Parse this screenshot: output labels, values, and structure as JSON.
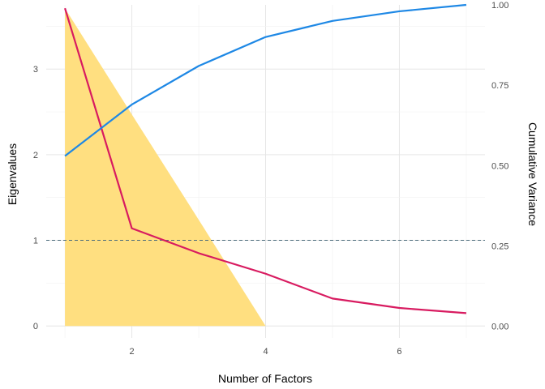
{
  "chart_data": {
    "type": "line",
    "x": [
      1,
      2,
      3,
      4,
      5,
      6,
      7
    ],
    "x_ticks": [
      2,
      4,
      6
    ],
    "xlabel": "Number of Factors",
    "ylabel": "Eigenvalues",
    "y2label": "Cumulative Variance",
    "ylim": [
      -0.14,
      3.75
    ],
    "y_ticks": [
      0,
      1,
      2,
      3
    ],
    "y2lim": [
      -0.036,
      1.0
    ],
    "y2_ticks": [
      0.0,
      0.25,
      0.5,
      0.75,
      1.0
    ],
    "y2_tick_labels": [
      "0.00",
      "0.25",
      "0.50",
      "0.75",
      "1.00"
    ],
    "grid": true,
    "reference_line": {
      "y": 1,
      "style": "dashed",
      "color": "#4a6a7a"
    },
    "series": [
      {
        "kind": "area",
        "axis": "left",
        "color": "#FFDF80",
        "x": [
          1,
          2,
          3,
          4
        ],
        "values": [
          3.71,
          2.47,
          1.24,
          0.0
        ]
      },
      {
        "kind": "line",
        "axis": "left",
        "color": "#D81B60",
        "x": [
          1,
          2,
          3,
          4,
          5,
          6,
          7
        ],
        "values": [
          3.71,
          1.14,
          0.85,
          0.61,
          0.32,
          0.21,
          0.15
        ]
      },
      {
        "kind": "line",
        "axis": "right",
        "color": "#1E88E5",
        "x": [
          1,
          2,
          3,
          4,
          5,
          6,
          7
        ],
        "values": [
          0.53,
          0.69,
          0.81,
          0.9,
          0.95,
          0.98,
          1.0
        ]
      }
    ]
  }
}
